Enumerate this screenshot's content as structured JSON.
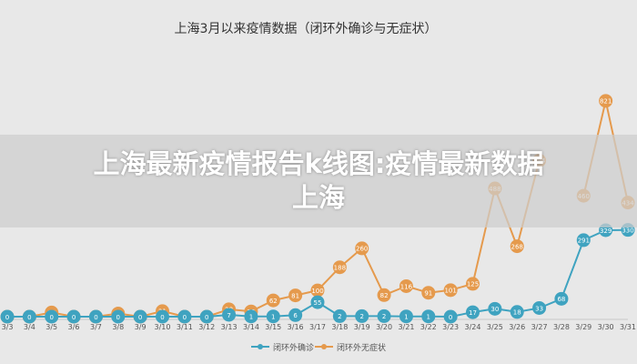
{
  "overlay": {
    "title_line1": "上海最新疫情报告k线图:疫情最新数据",
    "title_line2": "上海"
  },
  "chart_data": {
    "type": "line",
    "title": "上海3月以来疫情数据（闭环外确诊与无症状）",
    "categories": [
      "3/3",
      "3/4",
      "3/5",
      "3/6",
      "3/7",
      "3/8",
      "3/9",
      "3/10",
      "3/11",
      "3/12",
      "3/13",
      "3/14",
      "3/15",
      "3/16",
      "3/17",
      "3/18",
      "3/19",
      "3/20",
      "3/21",
      "3/22",
      "3/23",
      "3/24",
      "3/25",
      "3/26",
      "3/27",
      "3/28",
      "3/29",
      "3/30",
      "3/31"
    ],
    "series": [
      {
        "name": "闭环外确诊",
        "color": "#3fa3c0",
        "values": [
          0,
          0,
          0,
          0,
          0,
          0,
          0,
          0,
          0,
          0,
          7,
          1,
          1,
          6,
          55,
          2,
          2,
          2,
          1,
          1,
          0,
          17,
          30,
          18,
          33,
          68,
          291,
          329,
          330
        ],
        "labels": [
          "0",
          "0",
          "0",
          "0",
          "0",
          "0",
          "0",
          "0",
          "0",
          "0",
          "7",
          "1",
          "1",
          "6",
          "55",
          "2",
          "2",
          "2",
          "1",
          "1",
          "0",
          "17",
          "30",
          "18",
          "33",
          "68",
          "291",
          "329",
          "330"
        ]
      },
      {
        "name": "闭环外无症状",
        "color": "#e59a4d",
        "values": [
          0,
          0,
          16,
          0,
          0,
          12,
          0,
          21,
          0,
          0,
          28,
          20,
          62,
          81,
          100,
          188,
          260,
          82,
          116,
          91,
          101,
          125,
          488,
          268,
          594,
          null,
          460,
          821,
          434
        ],
        "labels": [
          "0",
          "0",
          "16",
          "0",
          "0",
          "12",
          "0",
          "21",
          "0",
          "0",
          "28",
          "20",
          "62",
          "81",
          "100",
          "188",
          "260",
          "82",
          "116",
          "91",
          "101",
          "125",
          "488",
          "268",
          "594",
          "",
          "460",
          "821",
          "434"
        ]
      }
    ],
    "ylim": [
      0,
      900
    ],
    "legend": "bottom",
    "grid": false
  }
}
